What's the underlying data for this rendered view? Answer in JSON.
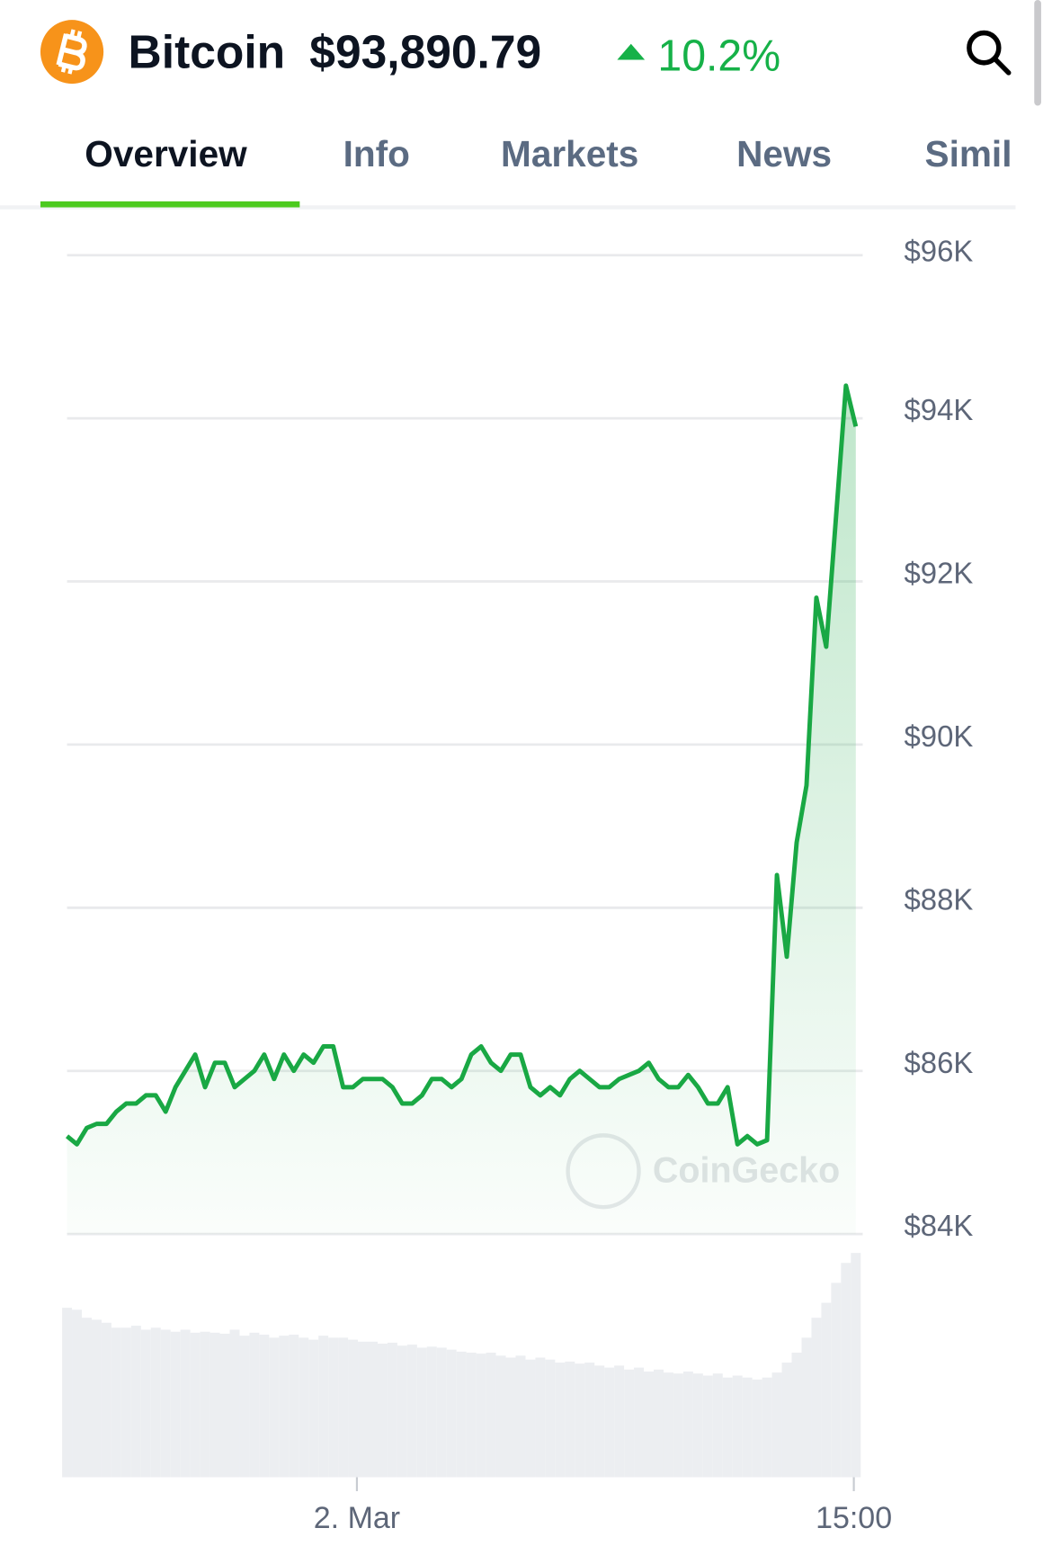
{
  "header": {
    "coin": "Bitcoin",
    "price": "$93,890.79",
    "change": "10.2%"
  },
  "tabs": [
    "Overview",
    "Info",
    "Markets",
    "News",
    "Simil"
  ],
  "chart_data": {
    "type": "line",
    "color": "#19a844",
    "values": [
      85200,
      85100,
      85300,
      85350,
      85350,
      85500,
      85600,
      85600,
      85700,
      85700,
      85500,
      85800,
      86000,
      86200,
      85800,
      86100,
      86100,
      85800,
      85900,
      86000,
      86200,
      85900,
      86200,
      86000,
      86200,
      86100,
      86300,
      86300,
      85800,
      85800,
      85900,
      85900,
      85900,
      85800,
      85600,
      85600,
      85700,
      85900,
      85900,
      85800,
      85900,
      86200,
      86300,
      86100,
      86000,
      86200,
      86200,
      85800,
      85700,
      85800,
      85700,
      85900,
      86000,
      85900,
      85800,
      85800,
      85900,
      85950,
      86000,
      86100,
      85900,
      85800,
      85800,
      85950,
      85800,
      85600,
      85600,
      85800,
      85100,
      85200,
      85100,
      85150,
      88400,
      87400,
      88800,
      89500,
      91800,
      91200,
      92800,
      94400,
      93900
    ],
    "volumes": [
      170,
      168,
      160,
      158,
      155,
      150,
      150,
      152,
      148,
      150,
      148,
      146,
      148,
      145,
      146,
      145,
      144,
      148,
      142,
      145,
      143,
      140,
      142,
      143,
      140,
      138,
      142,
      140,
      140,
      138,
      136,
      136,
      134,
      135,
      132,
      133,
      130,
      131,
      130,
      128,
      126,
      125,
      124,
      125,
      122,
      120,
      122,
      118,
      120,
      118,
      115,
      116,
      114,
      115,
      112,
      110,
      112,
      108,
      110,
      106,
      108,
      105,
      104,
      106,
      104,
      102,
      104,
      100,
      102,
      100,
      98,
      100,
      105,
      115,
      125,
      140,
      160,
      175,
      195,
      215,
      225
    ],
    "xlim": [
      0,
      80
    ],
    "xticks": [
      {
        "value": 29.4,
        "label": "2. Mar"
      },
      {
        "value": 79.8,
        "label": "15:00"
      }
    ],
    "ylim": [
      84000,
      96000
    ],
    "yticks": [
      {
        "value": 84000,
        "label": "$84K"
      },
      {
        "value": 86000,
        "label": "$86K"
      },
      {
        "value": 88000,
        "label": "$88K"
      },
      {
        "value": 90000,
        "label": "$90K"
      },
      {
        "value": 92000,
        "label": "$92K"
      },
      {
        "value": 94000,
        "label": "$94K"
      },
      {
        "value": 96000,
        "label": "$96K"
      }
    ],
    "grid": true,
    "watermark": "CoinGecko"
  }
}
